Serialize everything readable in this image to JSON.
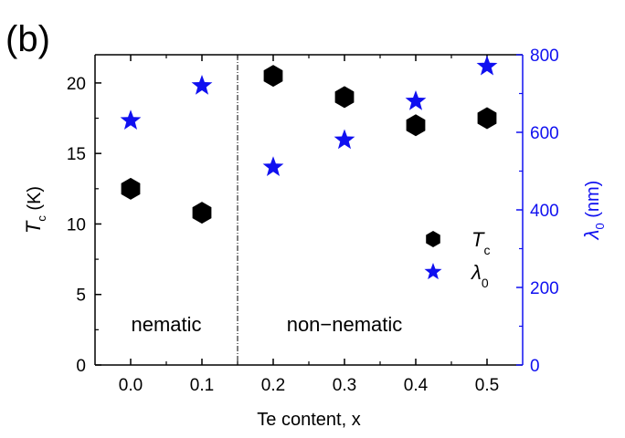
{
  "panel_label": "(b)",
  "chart_data": {
    "type": "scatter",
    "xlabel": "Te content, x",
    "ylabel_left": {
      "symbol": "T",
      "subscript": "c",
      "unit": " (K)"
    },
    "ylabel_right": {
      "symbol": "λ",
      "subscript": "0",
      "unit": " (nm)"
    },
    "xlim": [
      -0.05,
      0.55
    ],
    "ylim_left": [
      0,
      22
    ],
    "ylim_right": [
      0,
      800
    ],
    "x_ticks": [
      "0.0",
      "0.1",
      "0.2",
      "0.3",
      "0.4",
      "0.5"
    ],
    "y_left_ticks": [
      "0",
      "5",
      "10",
      "15",
      "20"
    ],
    "y_right_ticks": [
      "0",
      "200",
      "400",
      "600",
      "800"
    ],
    "divider_x": 0.15,
    "regions": [
      {
        "text": "nematic",
        "x": 0.05,
        "y_left": 2.4
      },
      {
        "text": "non−nematic",
        "x": 0.3,
        "y_left": 2.4
      }
    ],
    "series": [
      {
        "name": "T",
        "subscript": "c",
        "axis": "left",
        "marker": "hexagon",
        "color": "#000000",
        "x": [
          0.0,
          0.1,
          0.2,
          0.3,
          0.4,
          0.5
        ],
        "y": [
          12.5,
          10.8,
          20.5,
          19.0,
          17.0,
          17.5
        ]
      },
      {
        "name": "λ",
        "subscript": "0",
        "axis": "right",
        "marker": "star",
        "color": "#1010f0",
        "x": [
          0.0,
          0.1,
          0.2,
          0.3,
          0.4,
          0.5
        ],
        "y": [
          630,
          720,
          510,
          580,
          680,
          770
        ]
      }
    ],
    "legend_position": "right-middle",
    "grid": false,
    "left_axis_color": "#000000",
    "right_axis_color": "#1010f0"
  }
}
